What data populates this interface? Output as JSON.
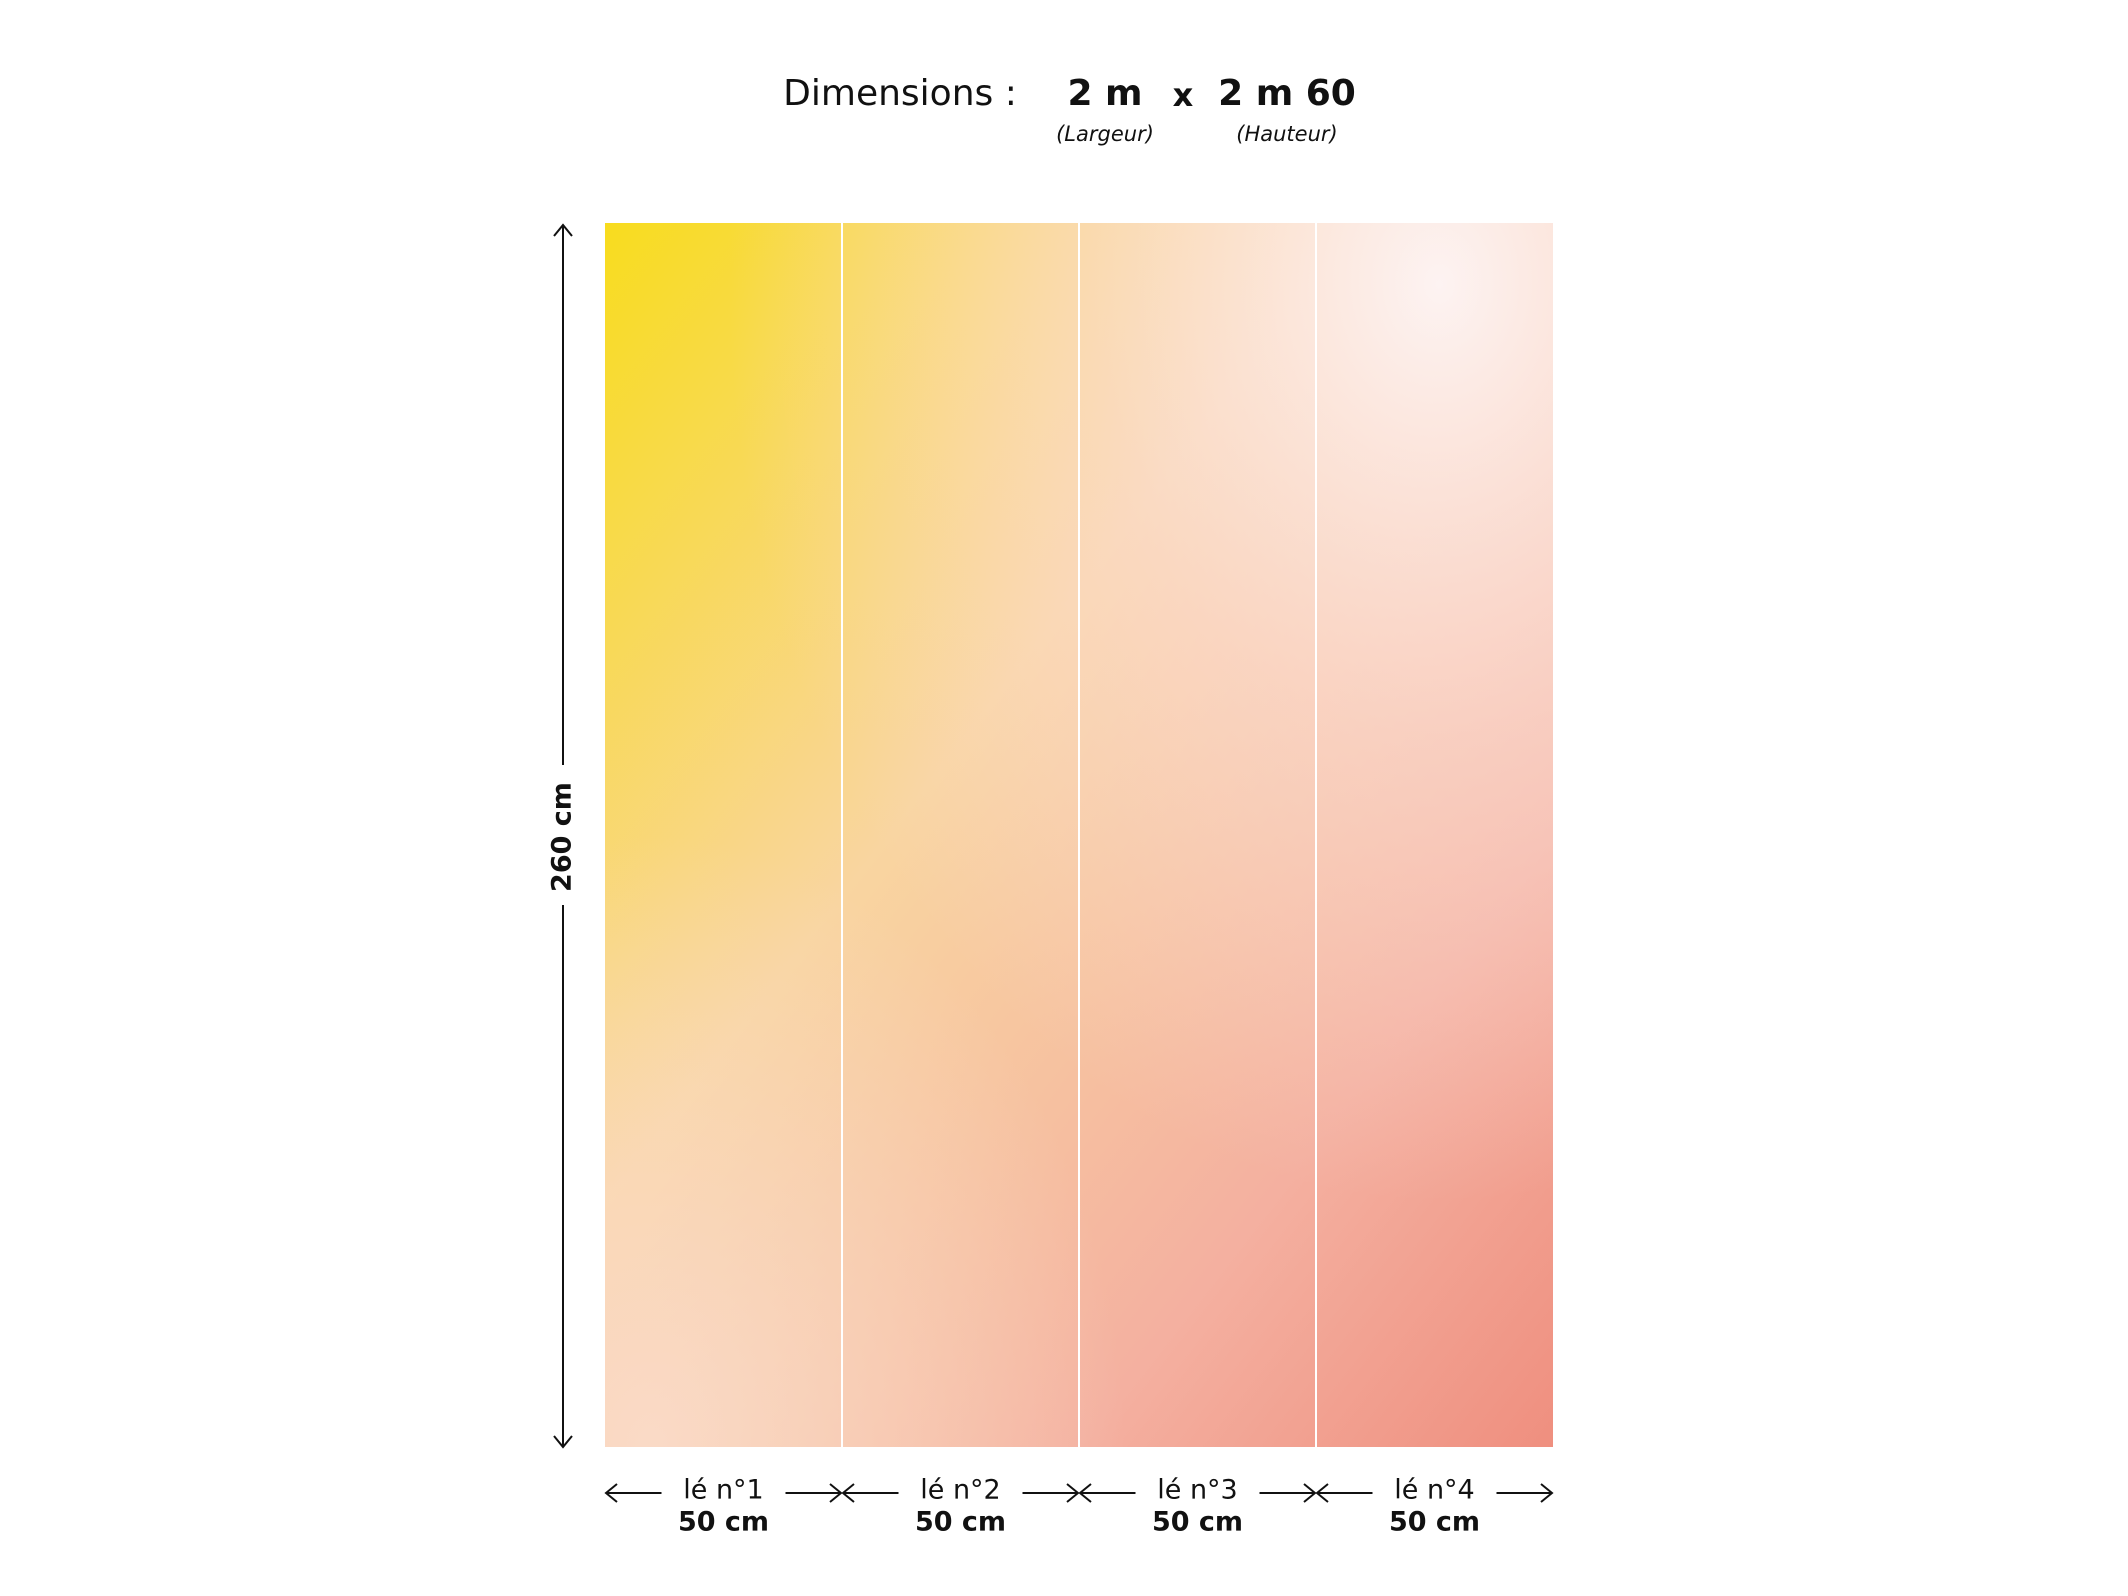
{
  "header": {
    "label": "Dimensions :",
    "width": "2 m",
    "separator": "x",
    "height": "2 m 60",
    "width_note": "(Largeur)",
    "height_note": "(Hauteur)"
  },
  "height_dimension": "260 cm",
  "panels": [
    {
      "label": "lé n°1",
      "width": "50 cm"
    },
    {
      "label": "lé n°2",
      "width": "50 cm"
    },
    {
      "label": "lé n°3",
      "width": "50 cm"
    },
    {
      "label": "lé n°4",
      "width": "50 cm"
    }
  ]
}
